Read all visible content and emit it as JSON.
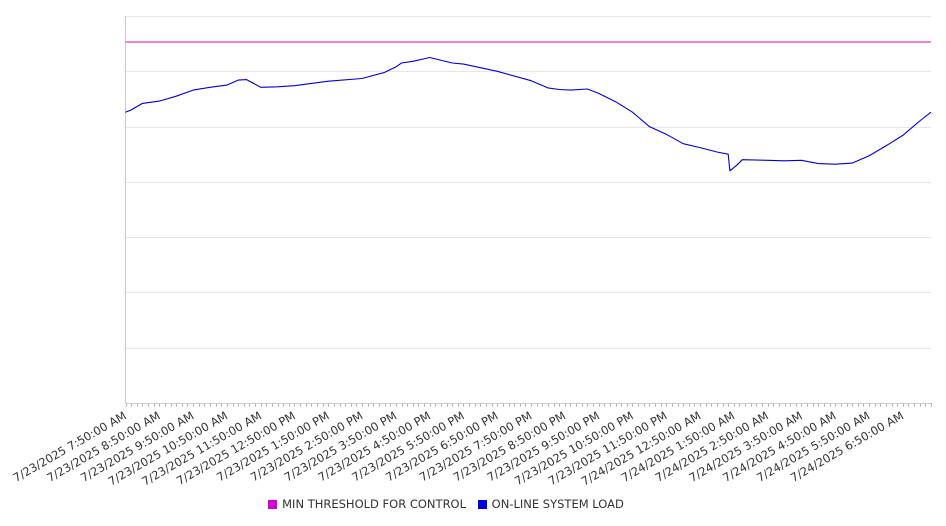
{
  "chart_data": {
    "type": "line",
    "title": "",
    "xlabel": "",
    "ylabel": "",
    "y_tick_labels_visible": false,
    "grid": "horizontal",
    "legend_position": "bottom",
    "x_tick_labels": [
      "7/23/2025 7:50:00 AM",
      "7/23/2025 8:50:00 AM",
      "7/23/2025 9:50:00 AM",
      "7/23/2025 10:50:00 AM",
      "7/23/2025 11:50:00 AM",
      "7/23/2025 12:50:00 PM",
      "7/23/2025 1:50:00 PM",
      "7/23/2025 2:50:00 PM",
      "7/23/2025 3:50:00 PM",
      "7/23/2025 4:50:00 PM",
      "7/23/2025 5:50:00 PM",
      "7/23/2025 6:50:00 PM",
      "7/23/2025 7:50:00 PM",
      "7/23/2025 8:50:00 PM",
      "7/23/2025 9:50:00 PM",
      "7/23/2025 10:50:00 PM",
      "7/23/2025 11:50:00 PM",
      "7/24/2025 12:50:00 AM",
      "7/24/2025 1:50:00 AM",
      "7/24/2025 2:50:00 AM",
      "7/24/2025 3:50:00 AM",
      "7/24/2025 4:50:00 AM",
      "7/24/2025 5:50:00 AM",
      "7/24/2025 6:50:00 AM"
    ],
    "ylim": [
      0,
      7
    ],
    "series": [
      {
        "name": "MIN THRESHOLD FOR CONTROL",
        "color": "#d400d4",
        "x": [
          "7/23/2025 7:50:00 AM",
          "7/24/2025 7:40:00 AM"
        ],
        "y": [
          6.53,
          6.53
        ]
      },
      {
        "name": "ON-LINE SYSTEM LOAD",
        "color": "#0000dd",
        "x": [
          "7/23/2025 7:50:00 AM",
          "7/23/2025 8:00:00 AM",
          "7/23/2025 8:20:00 AM",
          "7/23/2025 8:50:00 AM",
          "7/23/2025 9:20:00 AM",
          "7/23/2025 9:50:00 AM",
          "7/23/2025 10:20:00 AM",
          "7/23/2025 10:50:00 AM",
          "7/23/2025 11:10:00 AM",
          "7/23/2025 11:25:00 AM",
          "7/23/2025 11:50:00 AM",
          "7/23/2025 12:20:00 PM",
          "7/23/2025 12:50:00 PM",
          "7/23/2025 1:50:00 PM",
          "7/23/2025 2:50:00 PM",
          "7/23/2025 3:30:00 PM",
          "7/23/2025 3:50:00 PM",
          "7/23/2025 4:00:00 PM",
          "7/23/2025 4:20:00 PM",
          "7/23/2025 4:50:00 PM",
          "7/23/2025 5:30:00 PM",
          "7/23/2025 5:50:00 PM",
          "7/23/2025 6:50:00 PM",
          "7/23/2025 7:50:00 PM",
          "7/23/2025 8:20:00 PM",
          "7/23/2025 8:40:00 PM",
          "7/23/2025 9:00:00 PM",
          "7/23/2025 9:30:00 PM",
          "7/23/2025 9:50:00 PM",
          "7/23/2025 10:20:00 PM",
          "7/23/2025 10:50:00 PM",
          "7/23/2025 11:20:00 PM",
          "7/23/2025 11:50:00 PM",
          "7/24/2025 12:20:00 AM",
          "7/24/2025 12:50:00 AM",
          "7/24/2025 1:20:00 AM",
          "7/24/2025 1:40:00 AM",
          "7/24/2025 1:43:00 AM",
          "7/24/2025 1:55:00 AM",
          "7/24/2025 2:05:00 AM",
          "7/24/2025 2:50:00 AM",
          "7/24/2025 3:20:00 AM",
          "7/24/2025 3:50:00 AM",
          "7/24/2025 4:20:00 AM",
          "7/24/2025 4:50:00 AM",
          "7/24/2025 5:20:00 AM",
          "7/24/2025 5:50:00 AM",
          "7/24/2025 6:20:00 AM",
          "7/24/2025 6:50:00 AM",
          "7/24/2025 7:20:00 AM",
          "7/24/2025 7:40:00 AM"
        ],
        "y": [
          5.26,
          5.3,
          5.42,
          5.46,
          5.55,
          5.66,
          5.71,
          5.75,
          5.84,
          5.85,
          5.71,
          5.72,
          5.74,
          5.82,
          5.87,
          5.98,
          6.08,
          6.15,
          6.18,
          6.25,
          6.15,
          6.13,
          6.0,
          5.83,
          5.7,
          5.67,
          5.66,
          5.68,
          5.6,
          5.45,
          5.26,
          5.0,
          4.86,
          4.69,
          4.62,
          4.54,
          4.5,
          4.2,
          4.3,
          4.4,
          4.39,
          4.38,
          4.39,
          4.33,
          4.32,
          4.34,
          4.47,
          4.65,
          4.84,
          5.1,
          5.26
        ]
      }
    ]
  }
}
